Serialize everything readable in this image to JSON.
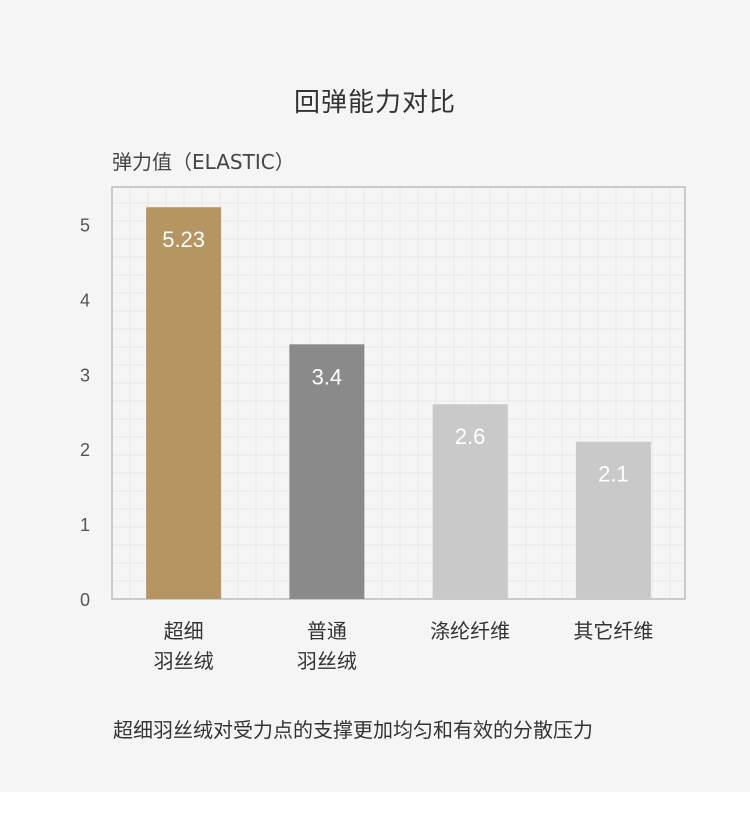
{
  "page": {
    "title": "回弹能力对比",
    "caption": "超细羽丝绒对受力点的支撑更加均匀和有效的分散压力"
  },
  "chart_data": {
    "type": "bar",
    "ylabel": "弹力值（ELASTIC）",
    "xlabel": "",
    "ylim": [
      0,
      5.5
    ],
    "yticks": [
      0,
      1,
      2,
      3,
      4,
      5
    ],
    "categories": [
      [
        "超细",
        "羽丝绒"
      ],
      [
        "普通",
        "羽丝绒"
      ],
      [
        "涤纶纤维"
      ],
      [
        "其它纤维"
      ]
    ],
    "values": [
      5.23,
      3.4,
      2.6,
      2.1
    ],
    "value_labels": [
      "5.23",
      "3.4",
      "2.6",
      "2.1"
    ],
    "bar_colors": [
      "#b59562",
      "#8a8a8a",
      "#c9c9c9",
      "#c9c9c9"
    ],
    "grid": true
  }
}
